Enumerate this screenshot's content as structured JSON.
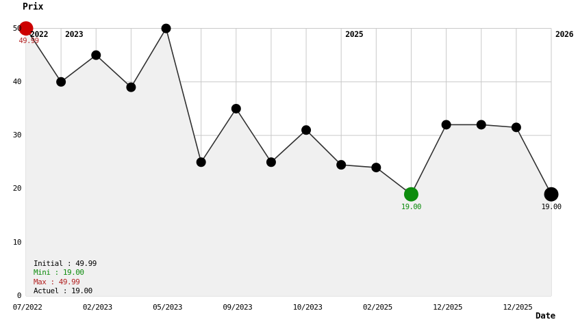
{
  "title": "Prix",
  "x_axis_title": "Date",
  "legend": [
    {
      "id": "initial",
      "text": "Initial : 49.99",
      "color": "#000000"
    },
    {
      "id": "mini",
      "text": "Mini : 19.00",
      "color": "#0d8c0d"
    },
    {
      "id": "max",
      "text": "Max : 49.99",
      "color": "#b22222"
    },
    {
      "id": "actuel",
      "text": "Actuel : 19.00",
      "color": "#000000"
    }
  ],
  "colors": {
    "line": "#303030",
    "grid": "#c9c9c9",
    "fill": "#f0f0f0",
    "initial_dot": "#cc0000",
    "min_dot": "#0d8c0d",
    "current_dot": "#000000",
    "max_text": "#b22222",
    "min_text": "#0d8c0d"
  },
  "chart_data": {
    "type": "line",
    "title": "Prix",
    "xlabel": "Date",
    "ylabel": "Prix",
    "ylim": [
      0,
      50
    ],
    "yticks": [
      0,
      10,
      20,
      30,
      40,
      50
    ],
    "grid": true,
    "legend_position": "bottom-left",
    "x_tick_labels": [
      {
        "text": "07/2022",
        "point_index": 0
      },
      {
        "text": "02/2023",
        "point_index": 2
      },
      {
        "text": "05/2023",
        "point_index": 4
      },
      {
        "text": "09/2023",
        "point_index": 6
      },
      {
        "text": "10/2023",
        "point_index": 8
      },
      {
        "text": "02/2025",
        "point_index": 10
      },
      {
        "text": "12/2025",
        "point_index": 12
      },
      {
        "text": "12/2025",
        "point_index": 14
      }
    ],
    "year_labels": [
      {
        "text": "2022",
        "point_index": 0
      },
      {
        "text": "2023",
        "point_index": 1
      },
      {
        "text": "2025",
        "point_index": 9
      },
      {
        "text": "2026",
        "point_index": 15
      }
    ],
    "points": [
      {
        "value": 49.99,
        "marker": "initial",
        "label": "49.99",
        "label_color": "#b22222",
        "label_dx": 4
      },
      {
        "value": 40
      },
      {
        "value": 45
      },
      {
        "value": 39
      },
      {
        "value": 49.99
      },
      {
        "value": 25
      },
      {
        "value": 35
      },
      {
        "value": 25
      },
      {
        "value": 31
      },
      {
        "value": 24.5
      },
      {
        "value": 24
      },
      {
        "value": 19,
        "marker": "min",
        "label": "19.00",
        "label_color": "#0d8c0d"
      },
      {
        "value": 32
      },
      {
        "value": 32
      },
      {
        "value": 31.5
      },
      {
        "value": 19,
        "marker": "current",
        "label": "19.00",
        "label_color": "#000000"
      }
    ]
  }
}
